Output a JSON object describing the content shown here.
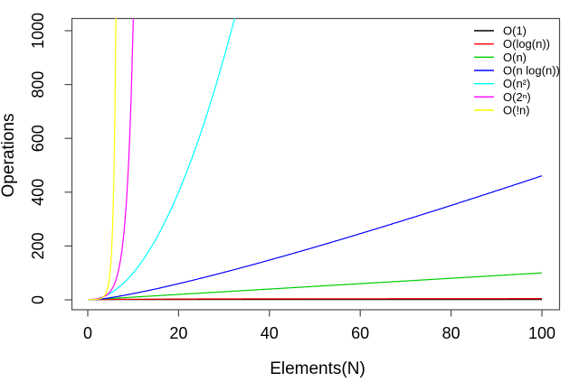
{
  "figure": {
    "background": "#ffffff",
    "frame_color": "#4d4d4d"
  },
  "chart_data": {
    "type": "line",
    "title": "",
    "xlabel": "Elements(N)",
    "ylabel": "Operations",
    "xlim": [
      0,
      100
    ],
    "ylim": [
      0,
      1000
    ],
    "grid": false,
    "legend_position": "top-right-inside",
    "legend_box": false,
    "x_ticks": [
      "0",
      "20",
      "40",
      "60",
      "80",
      "100"
    ],
    "x_tick_values": [
      0,
      20,
      40,
      60,
      80,
      100
    ],
    "y_ticks": [
      "0",
      "200",
      "400",
      "600",
      "800",
      "1000"
    ],
    "y_tick_values": [
      0,
      200,
      400,
      600,
      800,
      1000
    ],
    "series": [
      {
        "name": "O(1)",
        "color": "#000000",
        "fn": "constant",
        "x_range": [
          0,
          100
        ],
        "x": [
          0,
          20,
          40,
          60,
          80,
          100
        ],
        "y": [
          1,
          1,
          1,
          1,
          1,
          1
        ]
      },
      {
        "name": "O(log(n))",
        "color": "#ff0000",
        "fn": "log",
        "x_range": [
          1,
          100
        ],
        "x": [
          1,
          5,
          10,
          20,
          40,
          60,
          80,
          100
        ],
        "y": [
          0,
          1.61,
          2.3,
          3,
          3.69,
          4.09,
          4.38,
          4.61
        ]
      },
      {
        "name": "O(n)",
        "color": "#00cd00",
        "fn": "linear",
        "x_range": [
          0,
          100
        ],
        "x": [
          0,
          20,
          40,
          60,
          80,
          100
        ],
        "y": [
          0,
          20,
          40,
          60,
          80,
          100
        ]
      },
      {
        "name": "O(n log(n))",
        "color": "#0000ff",
        "fn": "nlogn",
        "x_range": [
          1,
          100
        ],
        "x": [
          1,
          10,
          20,
          40,
          60,
          80,
          100
        ],
        "y": [
          0,
          23,
          59.9,
          147.6,
          245.6,
          350.6,
          460.5
        ]
      },
      {
        "name": "O(n²)",
        "color": "#00ffff",
        "fn": "quadratic",
        "x_range": [
          0,
          100
        ],
        "x": [
          0,
          5,
          10,
          15,
          20,
          25,
          30,
          32.2
        ],
        "y": [
          0,
          25,
          100,
          225,
          400,
          625,
          900,
          1040
        ]
      },
      {
        "name": "O(2ⁿ)",
        "color": "#ff00ff",
        "fn": "exponential",
        "x_range": [
          0,
          100
        ],
        "x": [
          0,
          2,
          4,
          6,
          8,
          10
        ],
        "y": [
          1,
          4,
          16,
          64,
          256,
          1024
        ]
      },
      {
        "name": "O(!n)",
        "color": "#ffff00",
        "fn": "factorial",
        "x_range": [
          0,
          100
        ],
        "x": [
          1,
          2,
          3,
          4,
          5,
          6,
          6.4
        ],
        "y": [
          1,
          2,
          6,
          24,
          120,
          720,
          1040
        ]
      }
    ]
  }
}
